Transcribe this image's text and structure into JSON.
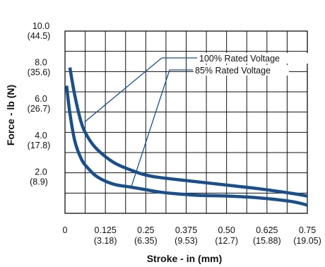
{
  "chart_data": {
    "type": "line",
    "xlabel": "Stroke - in (mm)",
    "ylabel": "Force - lb (N)",
    "xlim": [
      0,
      0.75
    ],
    "ylim": [
      0,
      10
    ],
    "grid": true,
    "x_ticks": [
      {
        "value": 0,
        "label": "0",
        "sub": ""
      },
      {
        "value": 0.125,
        "label": "0.125",
        "sub": "(3.18)"
      },
      {
        "value": 0.25,
        "label": "0.25",
        "sub": "(6.35)"
      },
      {
        "value": 0.375,
        "label": "0.375",
        "sub": "(9.53)"
      },
      {
        "value": 0.5,
        "label": "0.50",
        "sub": "(12.7)"
      },
      {
        "value": 0.625,
        "label": "0.625",
        "sub": "(15.88)"
      },
      {
        "value": 0.75,
        "label": "0.75",
        "sub": "(19.05)"
      }
    ],
    "y_ticks": [
      {
        "value": 2,
        "label": "2.0",
        "sub": "(8.9)"
      },
      {
        "value": 4,
        "label": "4.0",
        "sub": "(17.8)"
      },
      {
        "value": 6,
        "label": "6.0",
        "sub": "(26.7)"
      },
      {
        "value": 8,
        "label": "8.0",
        "sub": "(35.6)"
      },
      {
        "value": 10,
        "label": "10.0",
        "sub": "(44.5)"
      }
    ],
    "series": [
      {
        "name": "100% Rated Voltage",
        "color": "#1a4f8c",
        "x": [
          0.015,
          0.03,
          0.05,
          0.07,
          0.1,
          0.15,
          0.2,
          0.25,
          0.3,
          0.4,
          0.5,
          0.6,
          0.7,
          0.75
        ],
        "y": [
          8.0,
          6.5,
          5.0,
          4.2,
          3.5,
          2.8,
          2.4,
          2.1,
          1.95,
          1.75,
          1.55,
          1.35,
          1.1,
          0.95
        ]
      },
      {
        "name": "85% Rated Voltage",
        "color": "#1a4f8c",
        "x": [
          0.005,
          0.015,
          0.03,
          0.05,
          0.07,
          0.1,
          0.15,
          0.2,
          0.25,
          0.3,
          0.4,
          0.5,
          0.6,
          0.7,
          0.75
        ],
        "y": [
          7.0,
          5.5,
          4.0,
          3.0,
          2.5,
          2.0,
          1.6,
          1.45,
          1.3,
          1.15,
          1.0,
          0.95,
          0.85,
          0.65,
          0.45
        ]
      }
    ],
    "legend": {
      "placement": "top-right",
      "entries": [
        "100% Rated Voltage",
        "85% Rated Voltage"
      ],
      "leader_targets": [
        {
          "x": 0.06,
          "y": 5.0
        },
        {
          "x": 0.205,
          "y": 1.45
        }
      ]
    }
  }
}
